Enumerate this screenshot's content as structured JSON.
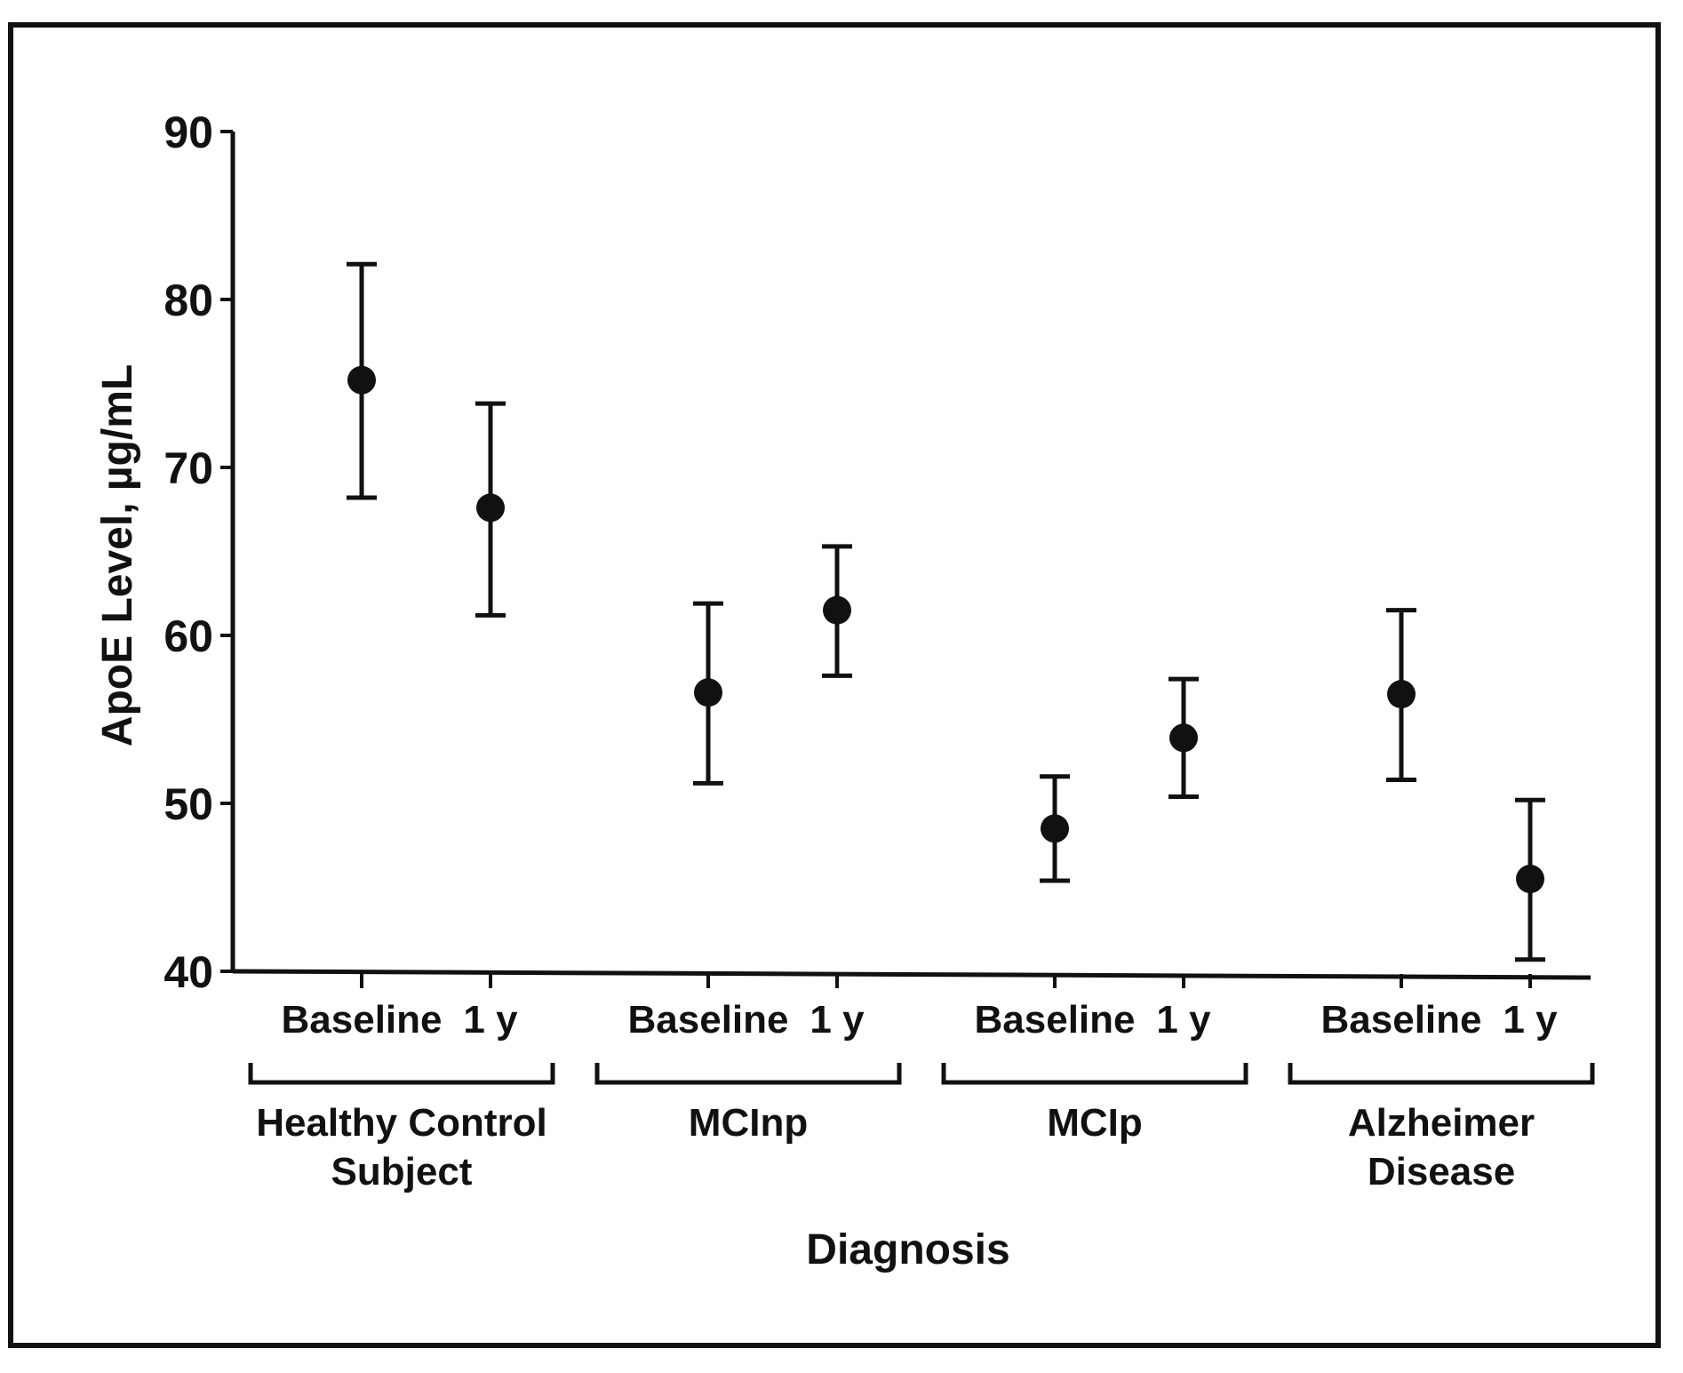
{
  "chart_data": {
    "type": "scatter",
    "title": "",
    "xlabel": "Diagnosis",
    "ylabel": "ApoE Level, µg/mL",
    "ylim": [
      40,
      90
    ],
    "yticks": [
      "40",
      "50",
      "60",
      "70",
      "80",
      "90"
    ],
    "grid": false,
    "groups": [
      {
        "label_lines": [
          "Healthy Control",
          "Subject"
        ],
        "points": [
          {
            "label": "Baseline",
            "value": 75.2,
            "lower": 68.2,
            "upper": 82.1
          },
          {
            "label": "1 y",
            "value": 67.6,
            "lower": 61.2,
            "upper": 73.8
          }
        ]
      },
      {
        "label_lines": [
          "MCInp"
        ],
        "points": [
          {
            "label": "Baseline",
            "value": 56.6,
            "lower": 51.2,
            "upper": 61.9
          },
          {
            "label": "1 y",
            "value": 61.5,
            "lower": 57.6,
            "upper": 65.3
          }
        ]
      },
      {
        "label_lines": [
          "MCIp"
        ],
        "points": [
          {
            "label": "Baseline",
            "value": 48.5,
            "lower": 45.4,
            "upper": 51.6
          },
          {
            "label": "1 y",
            "value": 53.9,
            "lower": 50.4,
            "upper": 57.4
          }
        ]
      },
      {
        "label_lines": [
          "Alzheimer",
          "Disease"
        ],
        "points": [
          {
            "label": "Baseline",
            "value": 56.5,
            "lower": 51.4,
            "upper": 61.5
          },
          {
            "label": "1 y",
            "value": 45.5,
            "lower": 40.7,
            "upper": 50.2
          }
        ]
      }
    ]
  }
}
